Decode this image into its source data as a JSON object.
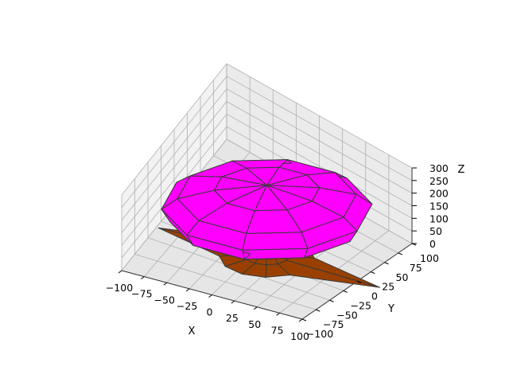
{
  "chart_data": {
    "type": "surface3d",
    "title": "",
    "xlabel": "X",
    "ylabel": "Y",
    "zlabel": "Z",
    "xlim": [
      -100,
      100
    ],
    "ylim": [
      -100,
      100
    ],
    "zlim": [
      0,
      300
    ],
    "x_ticks": [
      -100,
      -75,
      -50,
      -25,
      0,
      25,
      50,
      75,
      100
    ],
    "y_ticks": [
      -100,
      -75,
      -50,
      -25,
      0,
      25,
      50,
      75,
      100
    ],
    "z_ticks": [
      0,
      50,
      100,
      150,
      200,
      250,
      300
    ],
    "x_tick_labels": [
      "−100",
      "−75",
      "−50",
      "−25",
      "0",
      "25",
      "50",
      "75",
      "100"
    ],
    "y_tick_labels": [
      "−100",
      "−75",
      "−50",
      "−25",
      "0",
      "25",
      "50",
      "75",
      "100"
    ],
    "z_tick_labels": [
      "0",
      "50",
      "100",
      "150",
      "200",
      "250",
      "300"
    ],
    "grid": true,
    "series": [
      {
        "part": "trunk-and-roots",
        "color": "#994000",
        "segments": 12,
        "root_lengths": [
          125,
          45,
          45,
          110,
          45,
          45,
          120,
          45,
          45,
          45,
          45,
          45
        ],
        "profile": [
          {
            "z": 0,
            "r": 45
          },
          {
            "z": 8,
            "r": 22
          },
          {
            "z": 20,
            "r": 16
          },
          {
            "z": 45,
            "r": 14
          },
          {
            "z": 70,
            "r": 16
          }
        ]
      },
      {
        "part": "canopy",
        "color": "#ff00ff",
        "segments": 10,
        "profile": [
          {
            "z": 130,
            "r": 68
          },
          {
            "z": 150,
            "r": 92
          },
          {
            "z": 200,
            "r": 100
          },
          {
            "z": 240,
            "r": 85
          },
          {
            "z": 270,
            "r": 50
          },
          {
            "z": 285,
            "r": 0
          }
        ]
      }
    ]
  }
}
